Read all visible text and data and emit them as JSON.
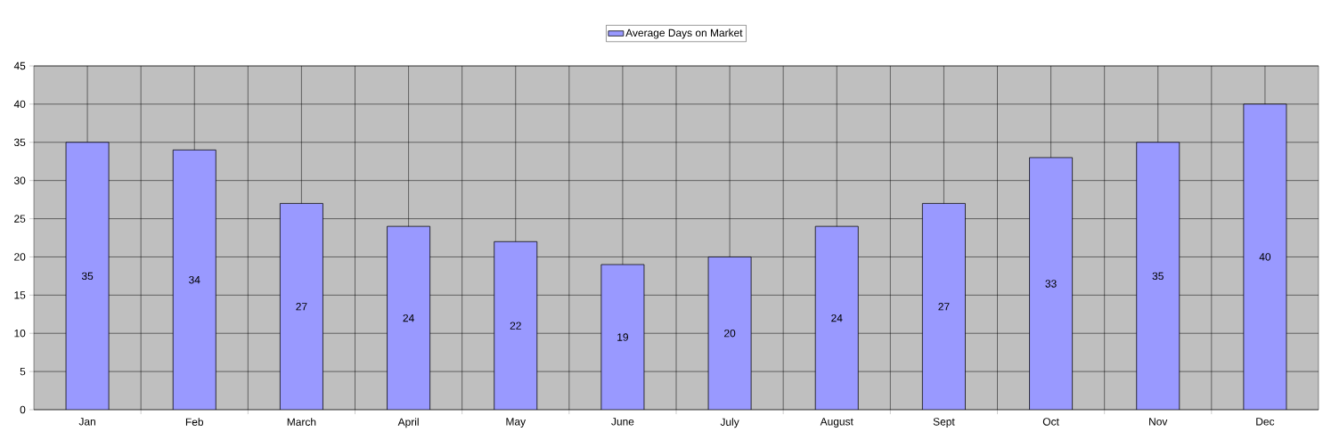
{
  "chart_data": {
    "type": "bar",
    "categories": [
      "Jan",
      "Feb",
      "March",
      "April",
      "May",
      "June",
      "July",
      "August",
      "Sept",
      "Oct",
      "Nov",
      "Dec"
    ],
    "series": [
      {
        "name": "Average Days on Market",
        "color": "#9999ff",
        "values": [
          35,
          34,
          27,
          24,
          22,
          19,
          20,
          24,
          27,
          33,
          35,
          40
        ]
      }
    ],
    "ylim": [
      0,
      45
    ],
    "yticks": [
      0,
      5,
      10,
      15,
      20,
      25,
      30,
      35,
      40,
      45
    ],
    "grid": true,
    "legend": "top",
    "data_labels": true
  }
}
